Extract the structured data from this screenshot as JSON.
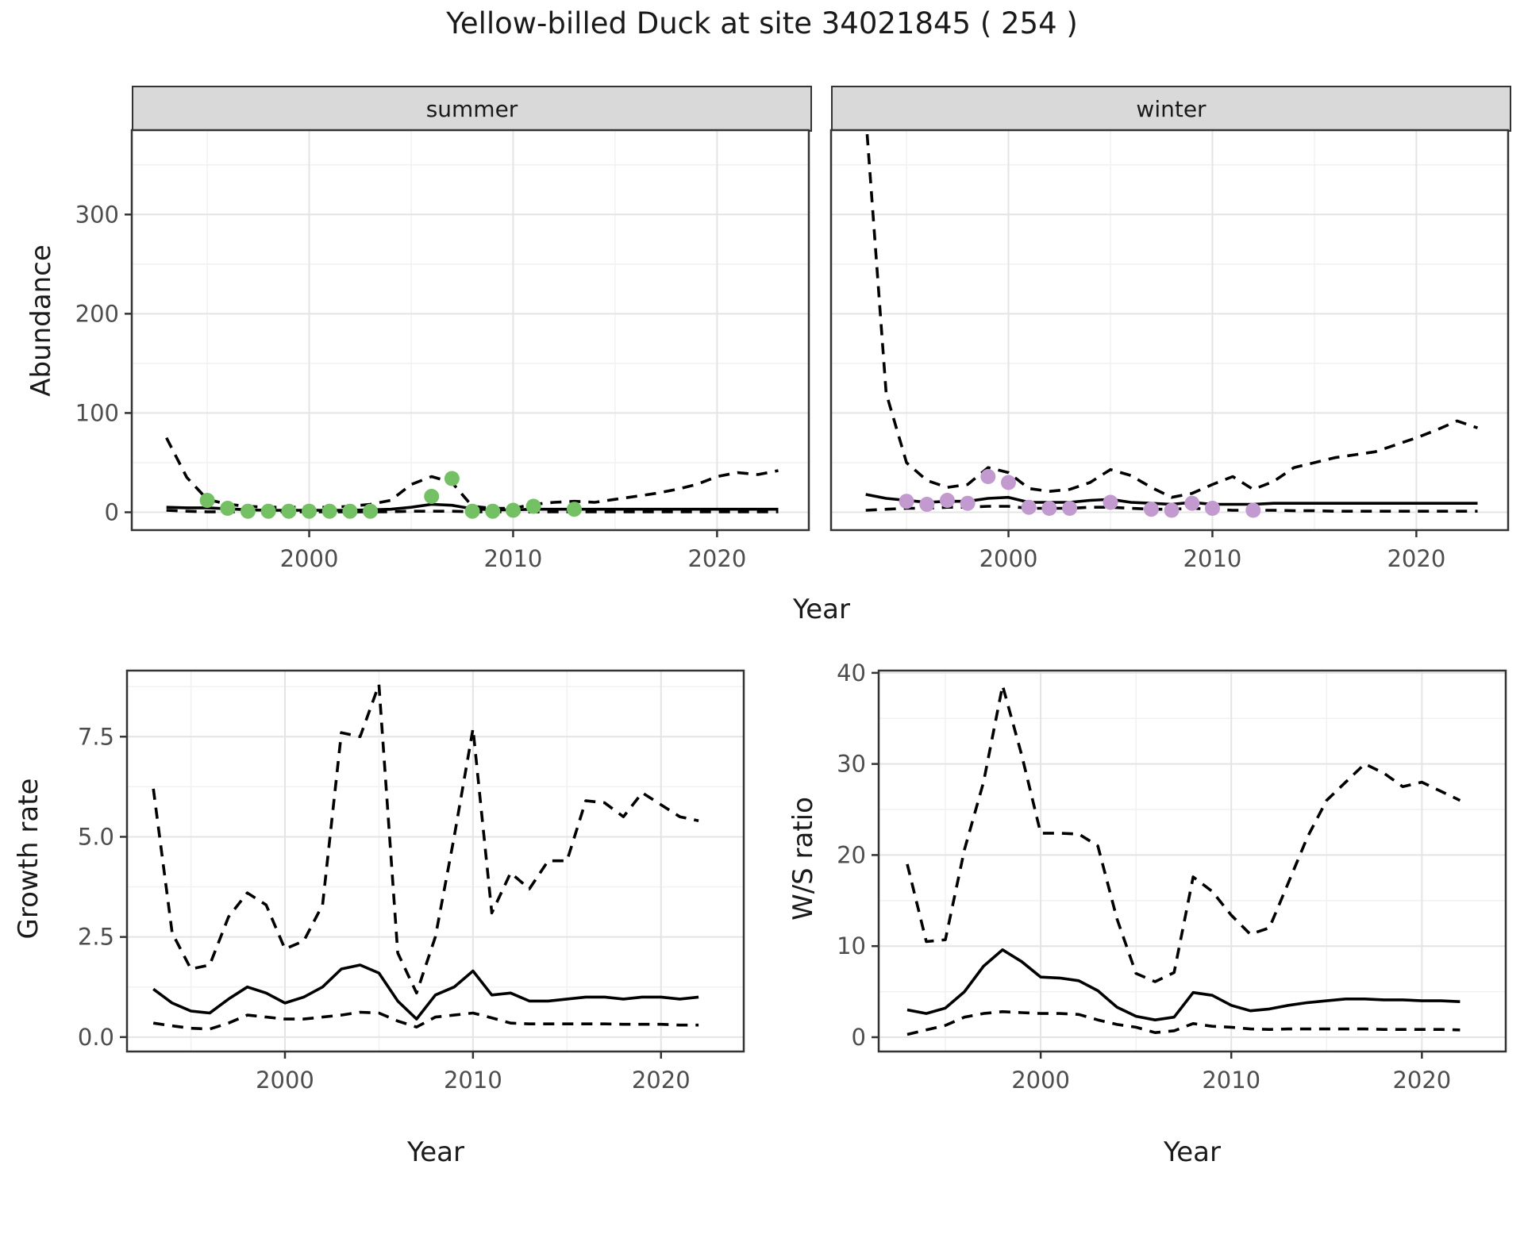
{
  "title": "Yellow-billed Duck at site 34021845 ( 254 )",
  "colors": {
    "summer_point": "#74c163",
    "winter_point": "#c29ad0",
    "line": "#000000",
    "strip_bg": "#d9d9d9",
    "border": "#333333",
    "grid_major": "#e4e4e4",
    "grid_minor": "#f1f1f1",
    "axis_text": "#4d4d4d",
    "title_text": "#1a1a1a"
  },
  "facets": {
    "summer_label": "summer",
    "winter_label": "winter"
  },
  "axis_titles": {
    "abundance": "Abundance",
    "year_top": "Year",
    "growth_rate": "Growth rate",
    "ws_ratio": "W/S ratio",
    "year_bottom_left": "Year",
    "year_bottom_right": "Year"
  },
  "chart_data": [
    {
      "id": "abundance_summer",
      "type": "line",
      "facet": "summer",
      "xlabel": "Year",
      "ylabel": "Abundance",
      "xlim": [
        1991.3,
        2024.5
      ],
      "ylim": [
        -18,
        385
      ],
      "xticks": [
        2000,
        2010,
        2020
      ],
      "yticks": [
        0,
        100,
        200,
        300
      ],
      "ytick_labels": [
        "0",
        "100",
        "200",
        "300"
      ],
      "yticks_visible": true,
      "grid": true,
      "years": [
        1993,
        1994,
        1995,
        1996,
        1997,
        1998,
        1999,
        2000,
        2001,
        2002,
        2003,
        2004,
        2005,
        2006,
        2007,
        2008,
        2009,
        2010,
        2011,
        2012,
        2013,
        2014,
        2015,
        2016,
        2017,
        2018,
        2019,
        2020,
        2021,
        2022,
        2023
      ],
      "series": [
        {
          "name": "mean",
          "style": "solid",
          "values": [
            5,
            4.5,
            4.5,
            3.5,
            2.5,
            2,
            2,
            2,
            2,
            2,
            2.5,
            3,
            5,
            8,
            7,
            3.5,
            2.5,
            2.5,
            3,
            3,
            3,
            3,
            3,
            3,
            3,
            3,
            3,
            3,
            3,
            3,
            3
          ]
        },
        {
          "name": "upper-ci",
          "style": "dashed",
          "values": [
            75,
            35,
            13,
            8,
            6,
            5,
            5,
            5,
            5,
            6,
            8,
            12,
            28,
            36,
            30,
            6,
            4,
            4,
            8,
            10,
            11,
            10,
            13,
            16,
            19,
            23,
            28,
            36,
            40,
            38,
            42
          ]
        },
        {
          "name": "lower-ci",
          "style": "dashed",
          "values": [
            2,
            1,
            0.5,
            0.5,
            0.5,
            0.5,
            0.5,
            0.5,
            0.5,
            0.5,
            0.5,
            0.5,
            1,
            1,
            1,
            0.5,
            0.5,
            0.5,
            0.5,
            0.5,
            0.5,
            0.5,
            0.5,
            0.5,
            0.5,
            0.5,
            0.5,
            0.5,
            0.5,
            0.5,
            0.5
          ]
        }
      ],
      "points": {
        "name": "summer-observations",
        "color": "#74c163",
        "years": [
          1995,
          1996,
          1997,
          1998,
          1999,
          2000,
          2001,
          2002,
          2003,
          2006,
          2007,
          2008,
          2009,
          2010,
          2011,
          2013
        ],
        "values": [
          12,
          4,
          1,
          1,
          1,
          1,
          1,
          1,
          1,
          16,
          34,
          1,
          1,
          2,
          6,
          3
        ]
      }
    },
    {
      "id": "abundance_winter",
      "type": "line",
      "facet": "winter",
      "xlabel": "Year",
      "ylabel": "Abundance",
      "xlim": [
        1991.3,
        2024.5
      ],
      "ylim": [
        -18,
        385
      ],
      "xticks": [
        2000,
        2010,
        2020
      ],
      "yticks": [
        0,
        100,
        200,
        300
      ],
      "ytick_labels": [
        "0",
        "100",
        "200",
        "300"
      ],
      "yticks_visible": false,
      "grid": true,
      "years": [
        1993,
        1994,
        1995,
        1996,
        1997,
        1998,
        1999,
        2000,
        2001,
        2002,
        2003,
        2004,
        2005,
        2006,
        2007,
        2008,
        2009,
        2010,
        2011,
        2012,
        2013,
        2014,
        2015,
        2016,
        2017,
        2018,
        2019,
        2020,
        2021,
        2022,
        2023
      ],
      "series": [
        {
          "name": "mean",
          "style": "solid",
          "values": [
            18,
            14,
            12,
            10,
            11,
            11,
            14,
            15,
            10,
            10,
            10,
            12,
            13,
            10,
            9,
            8,
            10,
            8,
            8,
            8,
            9,
            9,
            9,
            9,
            9,
            9,
            9,
            9,
            9,
            9,
            9
          ]
        },
        {
          "name": "upper-ci",
          "style": "dashed",
          "values": [
            400,
            120,
            50,
            32,
            25,
            28,
            45,
            40,
            24,
            21,
            23,
            30,
            43,
            37,
            25,
            15,
            19,
            28,
            36,
            23,
            31,
            45,
            50,
            55,
            58,
            61,
            68,
            75,
            83,
            92,
            85
          ]
        },
        {
          "name": "lower-ci",
          "style": "dashed",
          "values": [
            2,
            3,
            4,
            4,
            5,
            5,
            6,
            6,
            4,
            4,
            4,
            5,
            5,
            4,
            3,
            3,
            4,
            3,
            2,
            2,
            2,
            1.5,
            1.5,
            1,
            1,
            1,
            1,
            1,
            1,
            1,
            1
          ]
        }
      ],
      "points": {
        "name": "winter-observations",
        "color": "#c29ad0",
        "years": [
          1995,
          1996,
          1997,
          1998,
          1999,
          2000,
          2001,
          2002,
          2003,
          2005,
          2007,
          2008,
          2009,
          2010,
          2012
        ],
        "values": [
          11,
          8,
          12,
          9,
          36,
          30,
          5,
          4,
          4,
          10,
          3,
          2,
          9,
          4,
          2
        ]
      }
    },
    {
      "id": "growth_rate",
      "type": "line",
      "xlabel": "Year",
      "ylabel": "Growth rate",
      "xlim": [
        1991.6,
        2024.4
      ],
      "ylim": [
        -0.36,
        9.15
      ],
      "xticks": [
        2000,
        2010,
        2020
      ],
      "yticks": [
        0,
        2.5,
        5,
        7.5
      ],
      "ytick_labels": [
        "0.0",
        "2.5",
        "5.0",
        "7.5"
      ],
      "yticks_visible": true,
      "grid": true,
      "years": [
        1993,
        1994,
        1995,
        1996,
        1997,
        1998,
        1999,
        2000,
        2001,
        2002,
        2003,
        2004,
        2005,
        2006,
        2007,
        2008,
        2009,
        2010,
        2011,
        2012,
        2013,
        2014,
        2015,
        2016,
        2017,
        2018,
        2019,
        2020,
        2021,
        2022
      ],
      "series": [
        {
          "name": "mean",
          "style": "solid",
          "values": [
            1.2,
            0.85,
            0.65,
            0.6,
            0.95,
            1.25,
            1.1,
            0.85,
            1.0,
            1.25,
            1.7,
            1.8,
            1.6,
            0.9,
            0.45,
            1.05,
            1.25,
            1.65,
            1.05,
            1.1,
            0.9,
            0.9,
            0.95,
            1.0,
            1.0,
            0.95,
            1.0,
            1.0,
            0.95,
            1.0
          ]
        },
        {
          "name": "upper-ci",
          "style": "dashed",
          "values": [
            6.2,
            2.6,
            1.7,
            1.8,
            3.0,
            3.6,
            3.3,
            2.2,
            2.4,
            3.3,
            7.6,
            7.5,
            8.8,
            2.1,
            1.1,
            2.5,
            5.0,
            7.7,
            3.1,
            4.1,
            3.7,
            4.4,
            4.4,
            5.9,
            5.85,
            5.5,
            6.1,
            5.8,
            5.5,
            5.4
          ]
        },
        {
          "name": "lower-ci",
          "style": "dashed",
          "values": [
            0.35,
            0.28,
            0.22,
            0.2,
            0.35,
            0.55,
            0.5,
            0.45,
            0.45,
            0.5,
            0.55,
            0.62,
            0.6,
            0.4,
            0.25,
            0.5,
            0.55,
            0.6,
            0.48,
            0.35,
            0.33,
            0.33,
            0.33,
            0.33,
            0.33,
            0.32,
            0.32,
            0.32,
            0.3,
            0.3
          ]
        }
      ]
    },
    {
      "id": "ws_ratio",
      "type": "line",
      "xlabel": "Year",
      "ylabel": "W/S ratio",
      "xlim": [
        1991.5,
        2024.4
      ],
      "ylim": [
        -1.57,
        40.25
      ],
      "xticks": [
        2000,
        2010,
        2020
      ],
      "yticks": [
        0,
        10,
        20,
        30,
        40
      ],
      "ytick_labels": [
        "0",
        "10",
        "20",
        "30",
        "40"
      ],
      "yticks_visible": true,
      "grid": true,
      "years": [
        1993,
        1994,
        1995,
        1996,
        1997,
        1998,
        1999,
        2000,
        2001,
        2002,
        2003,
        2004,
        2005,
        2006,
        2007,
        2008,
        2009,
        2010,
        2011,
        2012,
        2013,
        2014,
        2015,
        2016,
        2017,
        2018,
        2019,
        2020,
        2021,
        2022
      ],
      "series": [
        {
          "name": "mean",
          "style": "solid",
          "values": [
            3.0,
            2.6,
            3.2,
            5.0,
            7.8,
            9.6,
            8.3,
            6.6,
            6.5,
            6.2,
            5.1,
            3.3,
            2.3,
            1.9,
            2.2,
            4.9,
            4.6,
            3.5,
            2.9,
            3.1,
            3.5,
            3.8,
            4.0,
            4.2,
            4.2,
            4.1,
            4.1,
            4.0,
            4.0,
            3.9
          ]
        },
        {
          "name": "upper-ci",
          "style": "dashed",
          "values": [
            19,
            10.5,
            10.7,
            20.6,
            28,
            38.6,
            31,
            22.4,
            22.4,
            22.3,
            21,
            13,
            7,
            6.1,
            7.1,
            17.6,
            16,
            13.4,
            11.3,
            12,
            17,
            22,
            26,
            28,
            30,
            29,
            27.5,
            28,
            27,
            26
          ]
        },
        {
          "name": "lower-ci",
          "style": "dashed",
          "values": [
            0.3,
            0.8,
            1.3,
            2.2,
            2.6,
            2.8,
            2.7,
            2.6,
            2.6,
            2.5,
            1.9,
            1.4,
            1.1,
            0.5,
            0.7,
            1.5,
            1.2,
            1.1,
            0.9,
            0.85,
            0.9,
            0.9,
            0.9,
            0.9,
            0.9,
            0.85,
            0.85,
            0.85,
            0.85,
            0.8
          ]
        }
      ]
    }
  ]
}
